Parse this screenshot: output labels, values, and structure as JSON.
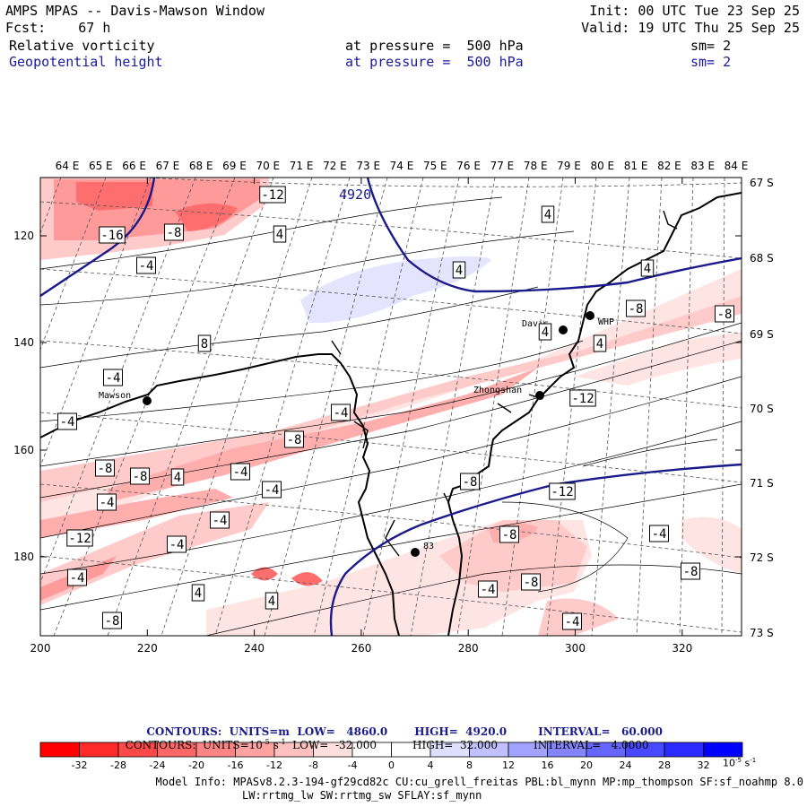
{
  "header": {
    "title": "AMPS MPAS -- Davis-Mawson Window",
    "fcst": "Fcst:    67 h",
    "init": "Init: 00 UTC Tue 23 Sep 25",
    "valid": "Valid: 19 UTC Thu 25 Sep 25",
    "field1": {
      "name": "Relative vorticity",
      "pressure": "at pressure =  500 hPa",
      "sm": "sm= 2"
    },
    "field2": {
      "name": "Geopotential height",
      "pressure": "at pressure =  500 hPa",
      "sm": "sm= 2"
    }
  },
  "map": {
    "top_lon_labels": [
      "64 E",
      "65 E",
      "66 E",
      "67 E",
      "68 E",
      "69 E",
      "70 E",
      "71 E",
      "72 E",
      "73 E",
      "74 E",
      "75 E",
      "76 E",
      "77 E",
      "78 E",
      "79 E",
      "80 E",
      "81 E",
      "82 E",
      "83 E",
      "84 E"
    ],
    "right_lat_labels": [
      "67 S",
      "68 S",
      "69 S",
      "70 S",
      "71 S",
      "72 S",
      "73 S"
    ],
    "left_y_ticks": [
      "120",
      "140",
      "160",
      "180"
    ],
    "bottom_x_ticks": [
      "200",
      "220",
      "240",
      "260",
      "280",
      "300",
      "320"
    ],
    "stations": [
      "Mawson",
      "Davis",
      "WHP",
      "Zhongshan",
      "83"
    ],
    "height_contour_label": "4920",
    "vorticity_labels": [
      "-12",
      "-16",
      "-8",
      "4",
      "-4",
      "4",
      "8",
      "4",
      "4",
      "-4",
      "-8",
      "4",
      "-4",
      "-8",
      "4",
      "-4",
      "-12",
      "-8",
      "-8",
      "-8",
      "4",
      "-4",
      "-4",
      "-8",
      "-4",
      "-12",
      "-4",
      "-12",
      "-4",
      "-4",
      "-8",
      "-8",
      "-4",
      "-8",
      "4",
      "-4",
      "4",
      "-4",
      "-8"
    ]
  },
  "contours": {
    "line1": {
      "label": "CONTOURS:  UNITS=m  LOW=   4860.0",
      "high": "HIGH=  4920.0",
      "interval": "INTERVAL=   60.000"
    },
    "line2": {
      "label": "CONTOURS:  UNITS=10",
      "exp": "-5",
      "unit_s": " s",
      "exp2": "-1",
      "low": "  LOW=  -32.000",
      "high": "HIGH=  32.000",
      "interval": "INTERVAL=   4.0000"
    }
  },
  "colorbar": {
    "ticks": [
      "-32",
      "-28",
      "-24",
      "-20",
      "-16",
      "-12",
      "-8",
      "-4",
      "0",
      "4",
      "8",
      "12",
      "16",
      "20",
      "24",
      "28",
      "32"
    ],
    "colors": [
      "#ff0000",
      "#ff2626",
      "#ff4a4a",
      "#ff6e6e",
      "#ff8f8f",
      "#ffaeae",
      "#ffcaca",
      "#ffe4e4",
      "#ffffff",
      "#ffffff",
      "#e4e4ff",
      "#c8c8ff",
      "#aaaaff",
      "#8888ff",
      "#6464ff",
      "#3a3aff",
      "#0f0fff"
    ],
    "unit_base": "10",
    "unit_exp": "-5",
    "unit_s": " s",
    "unit_exp2": "-1"
  },
  "footer": {
    "line1": "Model Info: MPASv8.2.3-194-gf29cd82c CU:cu_grell_freitas PBL:bl_mynn MP:mp_thompson SF:sf_noahmp 8.0",
    "line2": "LW:rrtmg_lw SW:rrtmg_sw SFLAY:sf_mynn"
  }
}
